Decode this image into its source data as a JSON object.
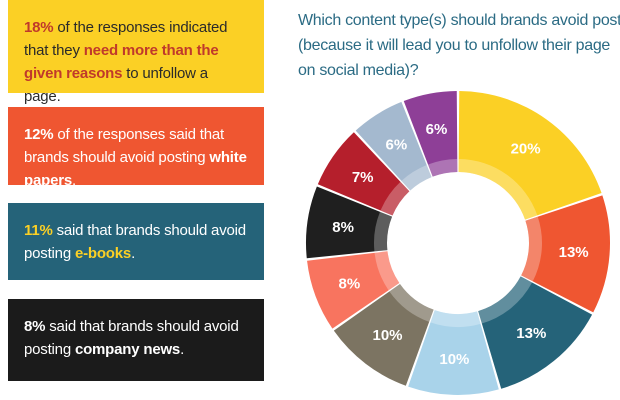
{
  "cards": [
    {
      "pct": "18%",
      "text_a": " of the responses indicated that they ",
      "highlight": "need more than the given reasons",
      "text_b": " to unfollow a page."
    },
    {
      "pct": "12%",
      "text_a": " of the responses said that brands should avoid posting ",
      "highlight": "white papers",
      "text_b": "."
    },
    {
      "pct": "11%",
      "text_a": " said that brands should avoid posting ",
      "highlight": "e-books",
      "text_b": "."
    },
    {
      "pct": "8%",
      "text_a": " said that brands should avoid posting ",
      "highlight": "company news",
      "text_b": "."
    }
  ],
  "chart_data": {
    "type": "pie",
    "title_lines": [
      "Which content type(s) should brands avoid posting",
      "(because it will lead you to unfollow their page",
      "on social media)?"
    ],
    "values": [
      20,
      13,
      13,
      10,
      10,
      8,
      8,
      7,
      6,
      6
    ],
    "labels": [
      "20%",
      "13%",
      "13%",
      "10%",
      "10%",
      "8%",
      "8%",
      "7%",
      "6%",
      "6%"
    ],
    "colors": [
      "#fbd025",
      "#ef5631",
      "#256379",
      "#a9d3ea",
      "#7c7462",
      "#f8745f",
      "#1f1f1f",
      "#b51f2c",
      "#a4b9cf",
      "#8e3f97"
    ],
    "label_colors": [
      "#ffffff",
      "#ffffff",
      "#ffffff",
      "#ffffff",
      "#ffffff",
      "#ffffff",
      "#ffffff",
      "#ffffff",
      "#ffffff",
      "#ffffff"
    ],
    "start_angle_deg": 0,
    "direction": "clockwise"
  }
}
